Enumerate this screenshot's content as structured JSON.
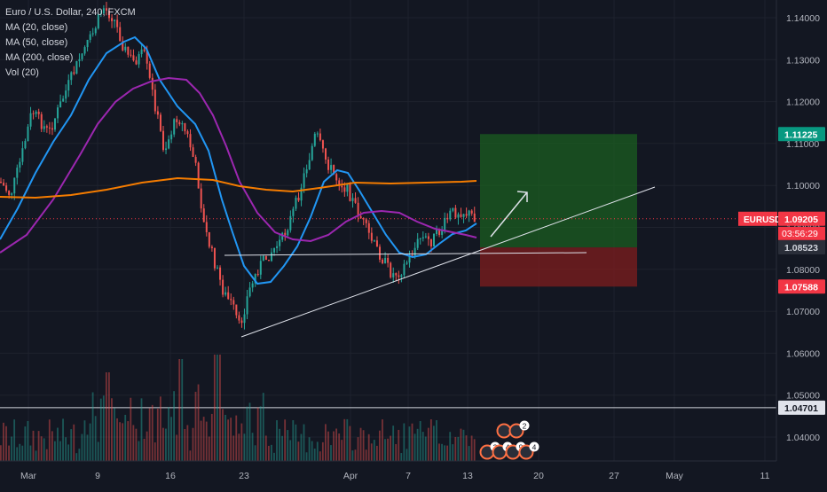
{
  "legend": {
    "symbol": "Euro / U.S. Dollar, 240, FXCM",
    "ma20": "MA (20, close)",
    "ma50": "MA (50, close)",
    "ma200": "MA (200, close)",
    "vol": "Vol (20)"
  },
  "colors": {
    "background": "#131722",
    "grid": "#1e222d",
    "up": "#26a69a",
    "down": "#ef5350",
    "ma20": "#2196f3",
    "ma50": "#9c27b0",
    "ma200": "#f57c00",
    "target_zone": "#1b5e20",
    "stop_zone": "#7f1d1d",
    "trendline": "#e0e3eb"
  },
  "chart_data": {
    "type": "candlestick",
    "symbol": "EURUSD",
    "timeframe": "240",
    "price_scale": {
      "ylim": [
        1.0345,
        1.1455
      ],
      "ticks": [
        "1.14000",
        "1.13000",
        "1.12000",
        "1.11000",
        "1.10000",
        "1.09000",
        "1.08000",
        "1.07000",
        "1.06000",
        "1.05000",
        "1.04000"
      ]
    },
    "time_axis": {
      "labels": [
        "Mar",
        "9",
        "16",
        "23",
        "Apr",
        "7",
        "13",
        "20",
        "27",
        "May",
        "11"
      ]
    },
    "price_labels": [
      {
        "name": "target",
        "value": "1.11225",
        "color": "#089981"
      },
      {
        "name": "symbol",
        "text": "EURUSD",
        "value": "1.09205",
        "color": "#f23645"
      },
      {
        "name": "countdown",
        "value": "03:56:29"
      },
      {
        "name": "entry",
        "value": "1.08523",
        "color": "#2a2e39"
      },
      {
        "name": "stop",
        "value": "1.07588",
        "color": "#f23645"
      },
      {
        "name": "horizontal",
        "value": "1.04701",
        "color": "#e0e3eb"
      }
    ],
    "current_price": 1.09205,
    "position": {
      "entry": 1.08523,
      "target": 1.11225,
      "stop": 1.07588
    },
    "horizontal_line": 1.04701,
    "event_badges": {
      "row_top": [
        "2"
      ],
      "row_bottom": [
        "3",
        "4",
        "9",
        "4"
      ]
    }
  }
}
